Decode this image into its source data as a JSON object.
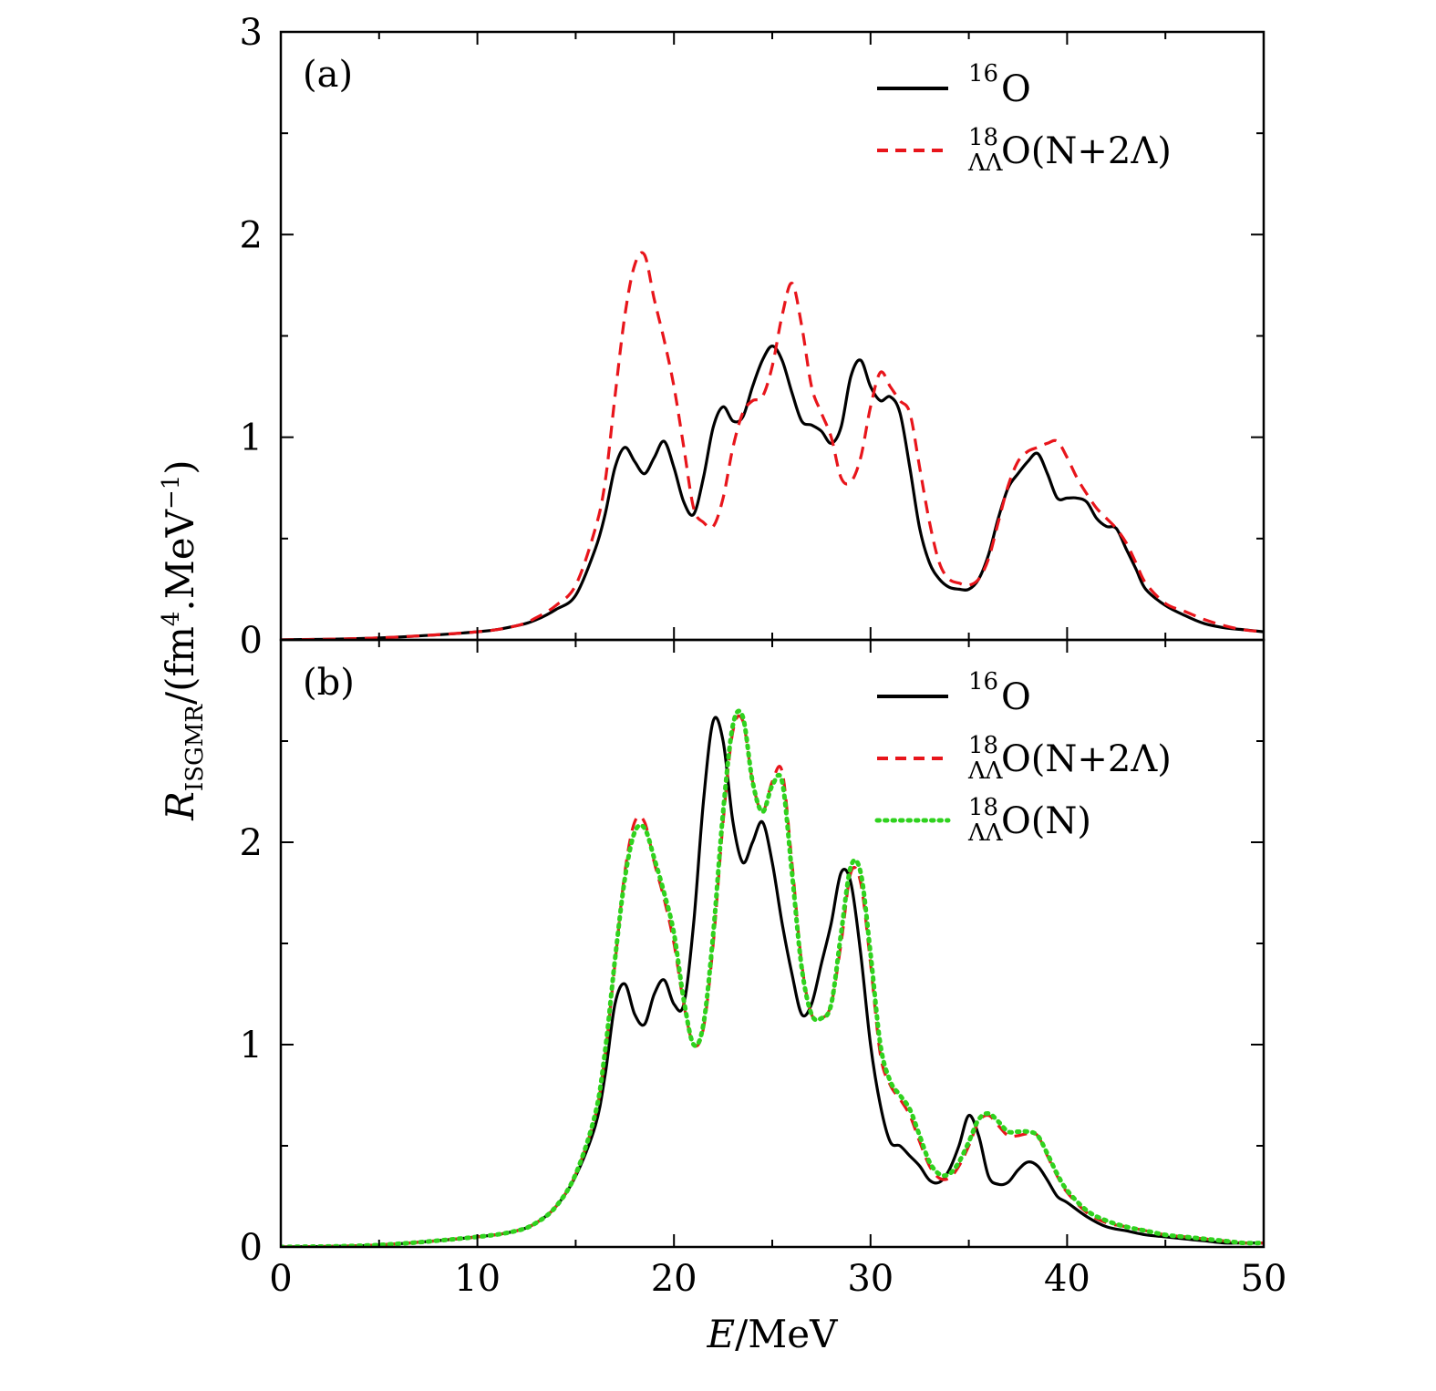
{
  "chart_data": [
    {
      "type": "line",
      "panel_label": "(a)",
      "xlabel": "E/MeV",
      "ylabel": "R_ISGMR/(fm^4.MeV^-1)",
      "xlim": [
        0,
        50
      ],
      "ylim": [
        0,
        3
      ],
      "xticks": [
        0,
        10,
        20,
        30,
        40,
        50
      ],
      "yticks": [
        0,
        1,
        2,
        3
      ],
      "legend_position": "top-right",
      "series": [
        {
          "name": "16O",
          "legend": {
            "sup": "16",
            "base": "O",
            "sub": "",
            "suffix": ""
          },
          "color": "#000000",
          "style": "solid",
          "x": [
            0,
            5,
            10,
            12,
            13,
            14,
            15,
            16,
            16.5,
            17,
            17.5,
            18,
            18.5,
            19,
            19.5,
            20,
            20.5,
            21,
            21.5,
            22,
            22.5,
            23,
            23.5,
            24,
            24.5,
            25,
            25.5,
            26,
            26.5,
            27,
            27.5,
            28,
            28.5,
            29,
            29.5,
            30,
            30.5,
            31,
            31.5,
            32,
            32.5,
            33,
            33.5,
            34,
            34.5,
            35,
            35.5,
            36,
            36.5,
            37,
            37.5,
            38,
            38.5,
            39,
            39.5,
            40,
            40.5,
            41,
            41.5,
            42,
            42.5,
            43,
            43.5,
            44,
            45,
            46,
            47,
            48,
            49,
            50
          ],
          "values": [
            0.0,
            0.01,
            0.04,
            0.07,
            0.1,
            0.15,
            0.22,
            0.45,
            0.62,
            0.85,
            0.95,
            0.88,
            0.82,
            0.9,
            0.98,
            0.85,
            0.68,
            0.62,
            0.8,
            1.05,
            1.15,
            1.08,
            1.1,
            1.25,
            1.38,
            1.45,
            1.38,
            1.22,
            1.08,
            1.06,
            1.03,
            0.97,
            1.05,
            1.3,
            1.38,
            1.25,
            1.18,
            1.2,
            1.12,
            0.85,
            0.55,
            0.38,
            0.3,
            0.26,
            0.25,
            0.25,
            0.3,
            0.42,
            0.6,
            0.75,
            0.82,
            0.88,
            0.92,
            0.82,
            0.7,
            0.7,
            0.7,
            0.68,
            0.6,
            0.56,
            0.55,
            0.45,
            0.35,
            0.25,
            0.17,
            0.12,
            0.08,
            0.06,
            0.05,
            0.04
          ]
        },
        {
          "name": "18ΛΛO(N+2Λ)",
          "legend": {
            "sup": "18",
            "base": "O",
            "sub": "ΛΛ",
            "suffix": "(N+2Λ)"
          },
          "color": "#e8151b",
          "style": "dashed",
          "x": [
            0,
            5,
            10,
            12,
            13,
            14,
            15,
            16,
            16.5,
            17,
            17.5,
            18,
            18.5,
            19,
            19.5,
            20,
            20.5,
            21,
            21.5,
            22,
            22.5,
            23,
            23.5,
            24,
            24.5,
            25,
            25.5,
            26,
            26.5,
            27,
            27.5,
            28,
            28.5,
            29,
            29.5,
            30,
            30.5,
            31,
            31.5,
            32,
            32.5,
            33,
            33.5,
            34,
            34.5,
            35,
            35.5,
            36,
            36.5,
            37,
            37.5,
            38,
            38.5,
            39,
            39.5,
            40,
            40.5,
            41,
            41.5,
            42,
            42.5,
            43,
            43.5,
            44,
            45,
            46,
            47,
            48,
            49,
            50
          ],
          "values": [
            0.0,
            0.01,
            0.04,
            0.07,
            0.11,
            0.17,
            0.27,
            0.55,
            0.78,
            1.2,
            1.6,
            1.85,
            1.9,
            1.68,
            1.48,
            1.25,
            0.95,
            0.65,
            0.58,
            0.56,
            0.7,
            0.95,
            1.12,
            1.18,
            1.2,
            1.35,
            1.6,
            1.76,
            1.55,
            1.25,
            1.12,
            1.0,
            0.8,
            0.78,
            0.9,
            1.15,
            1.32,
            1.25,
            1.18,
            1.12,
            0.85,
            0.58,
            0.38,
            0.3,
            0.28,
            0.27,
            0.3,
            0.4,
            0.58,
            0.76,
            0.88,
            0.93,
            0.95,
            0.97,
            0.98,
            0.9,
            0.8,
            0.72,
            0.65,
            0.6,
            0.55,
            0.48,
            0.38,
            0.28,
            0.18,
            0.14,
            0.1,
            0.07,
            0.05,
            0.04
          ]
        }
      ]
    },
    {
      "type": "line",
      "panel_label": "(b)",
      "xlabel": "E/MeV",
      "ylabel": "R_ISGMR/(fm^4.MeV^-1)",
      "xlim": [
        0,
        50
      ],
      "ylim": [
        0,
        3
      ],
      "xticks": [
        0,
        10,
        20,
        30,
        40,
        50
      ],
      "yticks": [
        0,
        1,
        2
      ],
      "legend_position": "top-right",
      "series": [
        {
          "name": "16O",
          "legend": {
            "sup": "16",
            "base": "O",
            "sub": "",
            "suffix": ""
          },
          "color": "#000000",
          "style": "solid",
          "x": [
            0,
            5,
            10,
            12,
            13,
            14,
            15,
            16,
            16.5,
            17,
            17.5,
            18,
            18.5,
            19,
            19.5,
            20,
            20.5,
            21,
            21.5,
            22,
            22.5,
            23,
            23.5,
            24,
            24.5,
            25,
            25.5,
            26,
            26.5,
            27,
            27.5,
            28,
            28.5,
            29,
            29.5,
            30,
            30.5,
            31,
            31.5,
            32,
            32.5,
            33,
            33.5,
            34,
            34.5,
            35,
            35.5,
            36,
            36.5,
            37,
            37.5,
            38,
            38.5,
            39,
            39.5,
            40,
            41,
            42,
            43,
            44,
            45,
            46,
            47,
            48,
            49,
            50
          ],
          "values": [
            0.0,
            0.01,
            0.05,
            0.08,
            0.12,
            0.2,
            0.35,
            0.6,
            0.85,
            1.2,
            1.3,
            1.15,
            1.1,
            1.25,
            1.32,
            1.2,
            1.2,
            1.6,
            2.2,
            2.6,
            2.5,
            2.1,
            1.9,
            2.0,
            2.1,
            1.9,
            1.6,
            1.35,
            1.15,
            1.2,
            1.4,
            1.6,
            1.85,
            1.8,
            1.45,
            1.0,
            0.7,
            0.52,
            0.5,
            0.45,
            0.4,
            0.33,
            0.32,
            0.38,
            0.5,
            0.65,
            0.55,
            0.35,
            0.31,
            0.32,
            0.38,
            0.42,
            0.4,
            0.33,
            0.25,
            0.22,
            0.15,
            0.1,
            0.08,
            0.06,
            0.05,
            0.04,
            0.03,
            0.02,
            0.02,
            0.02
          ]
        },
        {
          "name": "18ΛΛO(N+2Λ)",
          "legend": {
            "sup": "18",
            "base": "O",
            "sub": "ΛΛ",
            "suffix": "(N+2Λ)"
          },
          "color": "#e8151b",
          "style": "dashed",
          "x": [
            0,
            5,
            10,
            12,
            13,
            14,
            15,
            16,
            16.5,
            17,
            17.5,
            18,
            18.5,
            19,
            19.5,
            20,
            20.5,
            21,
            21.5,
            22,
            22.5,
            23,
            23.5,
            24,
            24.5,
            25,
            25.5,
            26,
            26.5,
            27,
            27.5,
            28,
            28.5,
            29,
            29.5,
            30,
            30.5,
            31,
            31.5,
            32,
            32.5,
            33,
            33.5,
            34,
            34.5,
            35,
            35.5,
            36,
            36.5,
            37,
            37.5,
            38,
            38.5,
            39,
            39.5,
            40,
            41,
            42,
            43,
            44,
            45,
            46,
            47,
            48,
            49,
            50
          ],
          "values": [
            0.0,
            0.01,
            0.05,
            0.08,
            0.12,
            0.2,
            0.36,
            0.65,
            0.95,
            1.4,
            1.85,
            2.1,
            2.1,
            1.9,
            1.72,
            1.5,
            1.2,
            1.0,
            1.08,
            1.5,
            2.1,
            2.55,
            2.6,
            2.3,
            2.15,
            2.3,
            2.35,
            1.9,
            1.4,
            1.15,
            1.13,
            1.2,
            1.5,
            1.85,
            1.8,
            1.4,
            0.95,
            0.8,
            0.73,
            0.65,
            0.52,
            0.4,
            0.34,
            0.34,
            0.4,
            0.5,
            0.62,
            0.65,
            0.6,
            0.55,
            0.55,
            0.56,
            0.55,
            0.45,
            0.35,
            0.27,
            0.17,
            0.12,
            0.1,
            0.08,
            0.06,
            0.05,
            0.04,
            0.03,
            0.02,
            0.02
          ]
        },
        {
          "name": "18ΛΛO(N)",
          "legend": {
            "sup": "18",
            "base": "O",
            "sub": "ΛΛ",
            "suffix": "(N)"
          },
          "color": "#2fd21e",
          "style": "dotted",
          "x": [
            0,
            5,
            10,
            12,
            13,
            14,
            15,
            16,
            16.5,
            17,
            17.5,
            18,
            18.5,
            19,
            19.5,
            20,
            20.5,
            21,
            21.5,
            22,
            22.5,
            23,
            23.5,
            24,
            24.5,
            25,
            25.5,
            26,
            26.5,
            27,
            27.5,
            28,
            28.5,
            29,
            29.5,
            30,
            30.5,
            31,
            31.5,
            32,
            32.5,
            33,
            33.5,
            34,
            34.5,
            35,
            35.5,
            36,
            36.5,
            37,
            37.5,
            38,
            38.5,
            39,
            39.5,
            40,
            41,
            42,
            43,
            44,
            45,
            46,
            47,
            48,
            49,
            50
          ],
          "values": [
            0.0,
            0.01,
            0.05,
            0.08,
            0.12,
            0.2,
            0.36,
            0.66,
            0.97,
            1.42,
            1.82,
            2.05,
            2.07,
            1.92,
            1.75,
            1.55,
            1.22,
            1.0,
            1.1,
            1.55,
            2.15,
            2.58,
            2.62,
            2.3,
            2.15,
            2.28,
            2.3,
            1.85,
            1.38,
            1.15,
            1.13,
            1.2,
            1.55,
            1.88,
            1.85,
            1.45,
            1.0,
            0.82,
            0.75,
            0.68,
            0.55,
            0.42,
            0.36,
            0.36,
            0.42,
            0.52,
            0.63,
            0.66,
            0.62,
            0.57,
            0.57,
            0.57,
            0.55,
            0.46,
            0.36,
            0.28,
            0.18,
            0.13,
            0.1,
            0.08,
            0.06,
            0.05,
            0.04,
            0.03,
            0.02,
            0.02
          ]
        }
      ]
    }
  ]
}
